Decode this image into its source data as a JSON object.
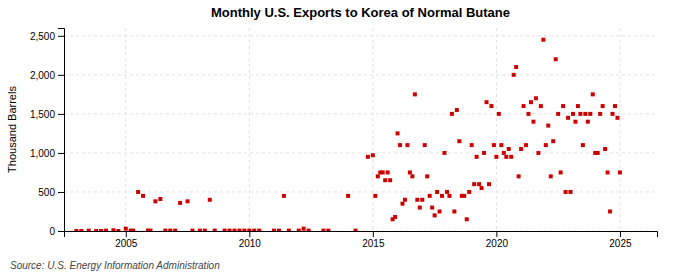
{
  "chart_data": {
    "type": "scatter",
    "title": "Monthly U.S. Exports to Korea of Normal Butane",
    "ylabel": "Thousand Barrels",
    "source": "Source: U.S. Energy Information Administration",
    "color": "#CC0000",
    "marker": "square",
    "grid": true,
    "xlim": [
      2002.5,
      2026.5
    ],
    "ylim": [
      0,
      2600
    ],
    "xticks": [
      2005,
      2010,
      2015,
      2020,
      2025
    ],
    "yticks": [
      0,
      500,
      {
        "value": 1000,
        "label": "1,000"
      },
      {
        "value": 1500,
        "label": "1,500"
      },
      {
        "value": 2000,
        "label": "2,000"
      },
      {
        "value": 2500,
        "label": "2,500"
      }
    ],
    "x": [
      2003.0,
      2003.2,
      2003.5,
      2003.8,
      2004.0,
      2004.2,
      2004.5,
      2004.7,
      2005.0,
      2005.2,
      2005.3,
      2005.5,
      2005.7,
      2005.9,
      2006.0,
      2006.2,
      2006.4,
      2006.6,
      2006.8,
      2007.0,
      2007.2,
      2007.5,
      2007.7,
      2008.0,
      2008.2,
      2008.4,
      2008.6,
      2009.0,
      2009.2,
      2009.4,
      2009.6,
      2009.8,
      2010.0,
      2010.2,
      2010.4,
      2011.0,
      2011.2,
      2011.4,
      2011.6,
      2012.0,
      2012.2,
      2012.4,
      2013.0,
      2013.2,
      2014.0,
      2014.3,
      2014.8,
      2015.0,
      2015.1,
      2015.2,
      2015.3,
      2015.4,
      2015.5,
      2015.6,
      2015.7,
      2015.8,
      2015.9,
      2016.0,
      2016.1,
      2016.2,
      2016.3,
      2016.4,
      2016.5,
      2016.6,
      2016.7,
      2016.8,
      2016.9,
      2017.0,
      2017.1,
      2017.2,
      2017.3,
      2017.4,
      2017.5,
      2017.6,
      2017.7,
      2017.8,
      2017.9,
      2018.0,
      2018.1,
      2018.2,
      2018.3,
      2018.4,
      2018.5,
      2018.6,
      2018.7,
      2018.8,
      2018.9,
      2019.0,
      2019.1,
      2019.2,
      2019.3,
      2019.4,
      2019.5,
      2019.6,
      2019.7,
      2019.8,
      2019.9,
      2020.0,
      2020.1,
      2020.2,
      2020.3,
      2020.4,
      2020.5,
      2020.6,
      2020.7,
      2020.8,
      2020.9,
      2021.0,
      2021.1,
      2021.2,
      2021.3,
      2021.4,
      2021.5,
      2021.6,
      2021.7,
      2021.8,
      2021.9,
      2022.0,
      2022.1,
      2022.2,
      2022.3,
      2022.4,
      2022.5,
      2022.6,
      2022.7,
      2022.8,
      2022.9,
      2023.0,
      2023.1,
      2023.2,
      2023.3,
      2023.4,
      2023.5,
      2023.6,
      2023.7,
      2023.8,
      2023.9,
      2024.0,
      2024.1,
      2024.2,
      2024.3,
      2024.4,
      2024.5,
      2024.6,
      2024.7,
      2024.8,
      2024.9,
      2025.0
    ],
    "values": [
      0,
      0,
      5,
      0,
      0,
      5,
      10,
      0,
      30,
      5,
      5,
      500,
      450,
      5,
      5,
      380,
      410,
      5,
      5,
      5,
      360,
      380,
      5,
      5,
      5,
      400,
      5,
      5,
      5,
      5,
      5,
      5,
      5,
      5,
      5,
      5,
      5,
      450,
      5,
      5,
      30,
      5,
      5,
      5,
      450,
      5,
      950,
      970,
      450,
      700,
      750,
      750,
      650,
      750,
      650,
      150,
      180,
      1250,
      1100,
      350,
      400,
      1100,
      750,
      700,
      1750,
      400,
      300,
      400,
      1100,
      700,
      450,
      300,
      200,
      500,
      250,
      450,
      1000,
      500,
      450,
      1500,
      250,
      1550,
      1150,
      450,
      450,
      150,
      500,
      1100,
      600,
      950,
      600,
      550,
      1000,
      1650,
      600,
      1600,
      1100,
      950,
      1500,
      1100,
      1000,
      950,
      1050,
      950,
      2000,
      2100,
      700,
      1050,
      1600,
      1100,
      1500,
      1650,
      1400,
      1700,
      1000,
      1600,
      2450,
      1100,
      1350,
      700,
      1150,
      2200,
      1500,
      750,
      1600,
      500,
      1450,
      500,
      1500,
      1400,
      1600,
      1500,
      1100,
      1500,
      1400,
      1500,
      1750,
      1000,
      1000,
      1500,
      1600,
      1050,
      750,
      250,
      1500,
      1600,
      1450,
      750
    ]
  }
}
